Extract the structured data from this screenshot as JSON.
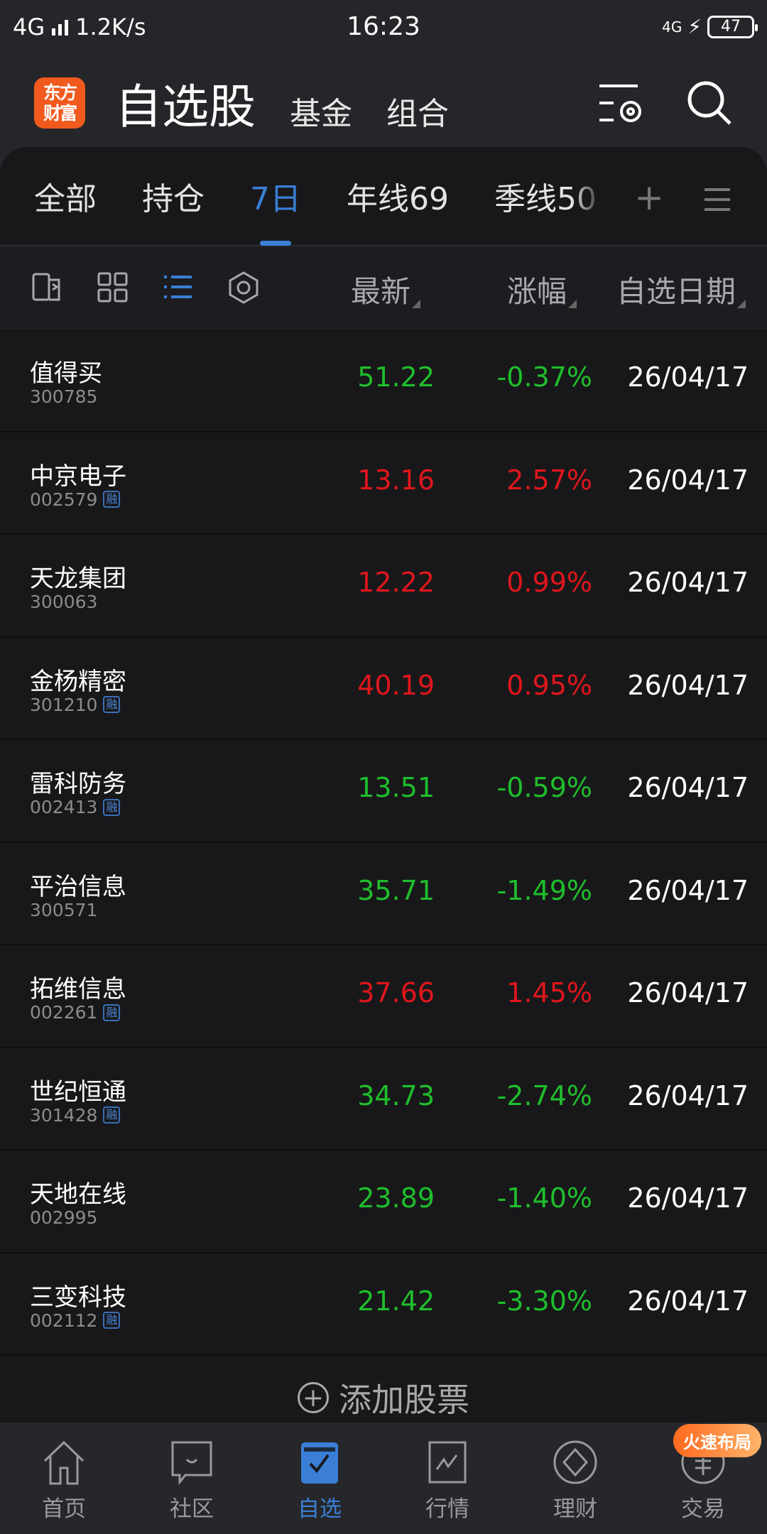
{
  "status_bar": {
    "network": "4G",
    "speed": "1.2K/s",
    "time": "16:23",
    "network_right": "4G",
    "battery": "47"
  },
  "header": {
    "logo": "东方财富",
    "title": "自选股",
    "tabs": [
      "基金",
      "组合"
    ],
    "icons": [
      "settings-list-icon",
      "search-icon"
    ]
  },
  "tabs": {
    "items": [
      "全部",
      "持仓",
      "7日",
      "年线69",
      "季线50"
    ],
    "active": "7日"
  },
  "toolbar": {
    "icons": [
      "switch-view-icon",
      "grid-icon",
      "list-icon",
      "hexagon-settings-icon"
    ],
    "columns": [
      "最新",
      "涨幅",
      "自选日期"
    ]
  },
  "colors": {
    "up": "#e0161c",
    "down": "#1fbe2c",
    "accent": "#3a7fd5"
  },
  "rows": [
    {
      "name": "值得买",
      "code": "300785",
      "rong": false,
      "price": "51.22",
      "pct": "-0.37%",
      "date": "26/04/17",
      "dir": "down"
    },
    {
      "name": "中京电子",
      "code": "002579",
      "rong": true,
      "price": "13.16",
      "pct": "2.57%",
      "date": "26/04/17",
      "dir": "up"
    },
    {
      "name": "天龙集团",
      "code": "300063",
      "rong": false,
      "price": "12.22",
      "pct": "0.99%",
      "date": "26/04/17",
      "dir": "up"
    },
    {
      "name": "金杨精密",
      "code": "301210",
      "rong": true,
      "price": "40.19",
      "pct": "0.95%",
      "date": "26/04/17",
      "dir": "up"
    },
    {
      "name": "雷科防务",
      "code": "002413",
      "rong": true,
      "price": "13.51",
      "pct": "-0.59%",
      "date": "26/04/17",
      "dir": "down"
    },
    {
      "name": "平治信息",
      "code": "300571",
      "rong": false,
      "price": "35.71",
      "pct": "-1.49%",
      "date": "26/04/17",
      "dir": "down"
    },
    {
      "name": "拓维信息",
      "code": "002261",
      "rong": true,
      "price": "37.66",
      "pct": "1.45%",
      "date": "26/04/17",
      "dir": "up"
    },
    {
      "name": "世纪恒通",
      "code": "301428",
      "rong": true,
      "price": "34.73",
      "pct": "-2.74%",
      "date": "26/04/17",
      "dir": "down"
    },
    {
      "name": "天地在线",
      "code": "002995",
      "rong": false,
      "price": "23.89",
      "pct": "-1.40%",
      "date": "26/04/17",
      "dir": "down"
    },
    {
      "name": "三变科技",
      "code": "002112",
      "rong": true,
      "price": "21.42",
      "pct": "-3.30%",
      "date": "26/04/17",
      "dir": "down"
    }
  ],
  "rong_label": "融",
  "add_stock": "添加股票",
  "nav": {
    "items": [
      "首页",
      "社区",
      "自选",
      "行情",
      "理财",
      "交易"
    ],
    "active": "自选",
    "badge": "火速布局"
  }
}
